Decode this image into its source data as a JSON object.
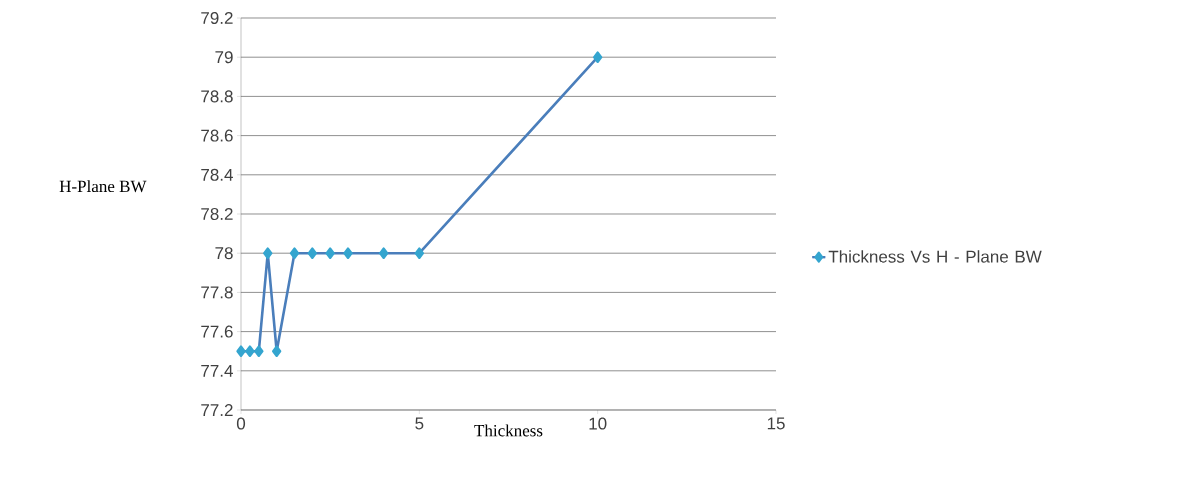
{
  "chart_data": {
    "type": "line",
    "xlabel": "Thickness",
    "ylabel": "H-Plane BW",
    "x": [
      0,
      0.25,
      0.5,
      0.75,
      1,
      1.5,
      2,
      2.5,
      3,
      4,
      5,
      10
    ],
    "series": [
      {
        "name": "Thickness Vs H - Plane BW",
        "color": "#4a7ebb",
        "values": [
          77.5,
          77.5,
          77.5,
          78,
          77.5,
          78,
          78,
          78,
          78,
          78,
          78,
          79
        ]
      }
    ],
    "xlim": [
      0,
      15
    ],
    "xticks": [
      0,
      5,
      10,
      15
    ],
    "ylim": [
      77.2,
      79.2
    ],
    "yticks": [
      77.2,
      77.4,
      77.6,
      77.8,
      78,
      78.2,
      78.4,
      78.6,
      78.8,
      79,
      79.2
    ],
    "grid": "y",
    "legend": "right",
    "marker": "diamond",
    "line_style": "solid"
  }
}
